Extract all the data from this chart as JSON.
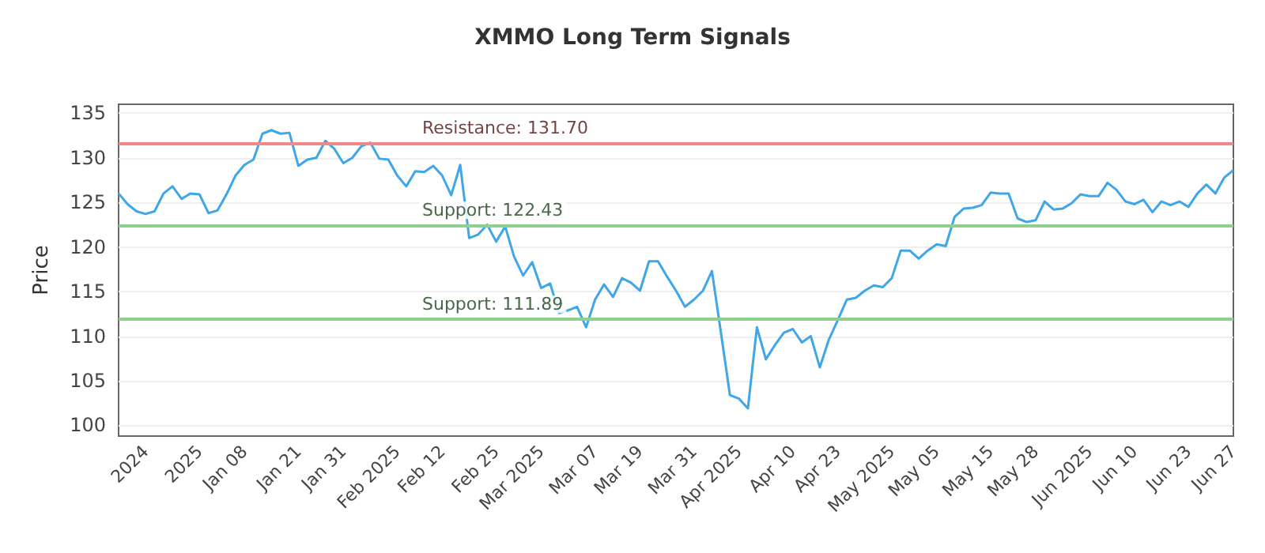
{
  "chart_data": {
    "type": "line",
    "title": "XMMO Long Term Signals",
    "ylabel": "Price",
    "categories": [
      null,
      null,
      null,
      "2024",
      null,
      null,
      null,
      null,
      null,
      "2025",
      null,
      null,
      null,
      null,
      "Jan 08",
      null,
      null,
      null,
      null,
      null,
      "Jan 21",
      null,
      null,
      null,
      null,
      "Jan 31",
      null,
      null,
      null,
      null,
      null,
      "Feb 2025",
      null,
      null,
      null,
      null,
      "Feb 12",
      null,
      null,
      null,
      null,
      null,
      "Feb 25",
      null,
      null,
      null,
      null,
      "Mar 2025",
      null,
      null,
      null,
      null,
      null,
      "Mar 07",
      null,
      null,
      null,
      null,
      "Mar 19",
      null,
      null,
      null,
      null,
      null,
      "Mar 31",
      null,
      null,
      null,
      null,
      "Apr 2025",
      null,
      null,
      null,
      null,
      null,
      "Apr 10",
      null,
      null,
      null,
      null,
      "Apr 23",
      null,
      null,
      null,
      null,
      null,
      "May 2025",
      null,
      null,
      null,
      null,
      "May 05",
      null,
      null,
      null,
      null,
      null,
      "May 15",
      null,
      null,
      null,
      null,
      "May 28",
      null,
      null,
      null,
      null,
      null,
      "Jun 2025",
      null,
      null,
      null,
      null,
      "Jun 10",
      null,
      null,
      null,
      null,
      null,
      "Jun 23",
      null,
      null,
      null,
      null,
      "Jun 27"
    ],
    "series": [
      {
        "color": "#3fa6e8",
        "values": [
          126.0,
          124.8,
          124.0,
          123.7,
          124.0,
          126.0,
          126.8,
          125.4,
          126.0,
          125.9,
          123.8,
          124.1,
          125.9,
          128.0,
          129.2,
          129.8,
          132.7,
          133.1,
          132.7,
          132.8,
          129.1,
          129.8,
          130.0,
          131.9,
          131.0,
          129.4,
          130.0,
          131.3,
          131.7,
          129.9,
          129.8,
          128.0,
          126.8,
          128.5,
          128.4,
          129.1,
          128.0,
          125.8,
          129.2,
          121.0,
          121.4,
          122.5,
          120.6,
          122.3,
          118.9,
          116.8,
          118.3,
          115.4,
          115.9,
          112.6,
          112.9,
          113.3,
          111.0,
          114.1,
          115.8,
          114.4,
          116.5,
          116.0,
          115.1,
          118.4,
          118.4,
          116.7,
          115.1,
          113.3,
          114.1,
          115.1,
          117.3,
          110.4,
          103.4,
          103.0,
          101.9,
          111.0,
          107.4,
          109.0,
          110.4,
          110.8,
          109.3,
          110.0,
          106.5,
          109.6,
          111.8,
          114.1,
          114.3,
          115.1,
          115.7,
          115.5,
          116.5,
          119.6,
          119.6,
          118.7,
          119.6,
          120.3,
          120.1,
          123.4,
          124.3,
          124.4,
          124.7,
          126.1,
          126.0,
          126.0,
          123.2,
          122.8,
          123.0,
          125.1,
          124.2,
          124.3,
          124.9,
          125.9,
          125.7,
          125.7,
          127.2,
          126.4,
          125.1,
          124.8,
          125.3,
          123.9,
          125.1,
          124.7,
          125.1,
          124.5,
          126.0,
          127.0,
          126.0,
          127.8,
          128.6
        ]
      }
    ],
    "ylim": [
      98.8,
      136
    ],
    "yticks": [
      100,
      105,
      110,
      115,
      120,
      125,
      130,
      135
    ],
    "ref_lines": [
      {
        "axis": "y",
        "value": 131.7,
        "label": "Resistance: 131.70",
        "color": "#f08a8a"
      },
      {
        "axis": "y",
        "value": 122.43,
        "label": "Support: 122.43",
        "color": "#8fd08f"
      },
      {
        "axis": "y",
        "value": 111.89,
        "label": "Support: 111.89",
        "color": "#8fd08f"
      }
    ],
    "grid": "y",
    "marker": "none",
    "line_style": "solid"
  }
}
